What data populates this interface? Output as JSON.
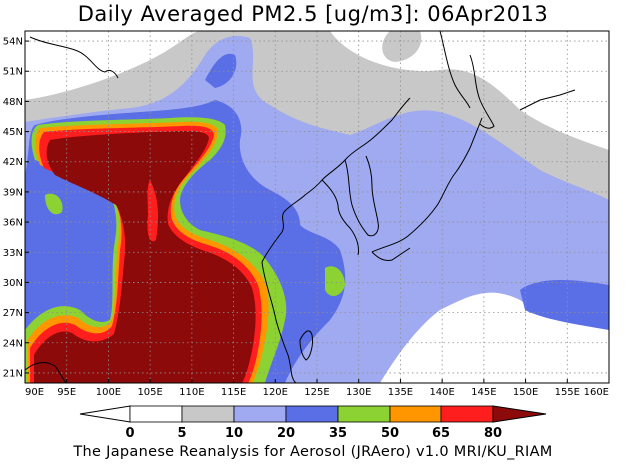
{
  "title": "Daily Averaged PM2.5 [ug/m3]: 06Apr2013",
  "footer": "The Japanese Reanalysis for Aerosol (JRAero) v1.0 MRI/KU_RIAM",
  "colors": {
    "lvl_0_5": "#ffffff",
    "lvl_5_10": "#c8c8c8",
    "lvl_10_20": "#a0aaf0",
    "lvl_20_35": "#5a6ee6",
    "lvl_35_50": "#8cd232",
    "lvl_50_65": "#ff9600",
    "lvl_65_80": "#ff1e1e",
    "lvl_80_plus": "#8c0a0a",
    "coast": "#000000",
    "grid": "#909090"
  },
  "lat_ticks": [
    "21N",
    "24N",
    "27N",
    "30N",
    "33N",
    "36N",
    "39N",
    "42N",
    "45N",
    "48N",
    "51N",
    "54N"
  ],
  "lon_ticks": [
    "90E",
    "95E",
    "100E",
    "105E",
    "110E",
    "115E",
    "120E",
    "125E",
    "130E",
    "135E",
    "140E",
    "145E",
    "150E",
    "155E",
    "160E"
  ],
  "colorbar": {
    "labels": [
      "0",
      "5",
      "10",
      "20",
      "35",
      "50",
      "65",
      "80"
    ]
  }
}
